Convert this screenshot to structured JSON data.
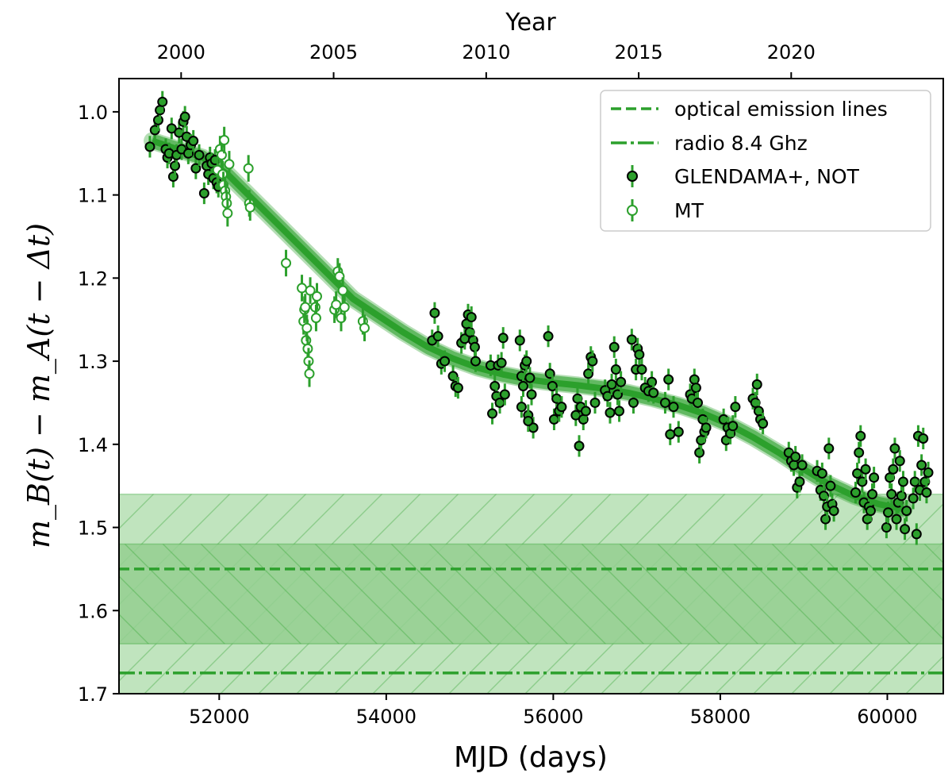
{
  "chart_data": {
    "type": "scatter",
    "title": "",
    "xlabel": "MJD (days)",
    "ylabel": "m_B(t) − m_A(t − Δt)",
    "top_xlabel": "Year",
    "xlim": [
      50800,
      60670
    ],
    "ylim": [
      0.96,
      1.7
    ],
    "y_inverted": true,
    "x_ticks": [
      52000,
      54000,
      56000,
      58000,
      60000
    ],
    "x_tick_labels": [
      "52000",
      "54000",
      "56000",
      "58000",
      "60000"
    ],
    "y_ticks": [
      1.0,
      1.1,
      1.2,
      1.3,
      1.4,
      1.5,
      1.6,
      1.7
    ],
    "y_tick_labels": [
      "1.0",
      "1.1",
      "1.2",
      "1.3",
      "1.4",
      "1.5",
      "1.6",
      "1.7"
    ],
    "top_ticks_mjd": [
      51544,
      53370,
      55197,
      57023,
      58849
    ],
    "top_tick_labels": [
      "2000",
      "2005",
      "2010",
      "2015",
      "2020"
    ],
    "colors": {
      "green": "#2ca02c",
      "band_light": "#c0e4be",
      "band_dark": "#94cf91",
      "marker_edge": "#000000"
    },
    "bands": [
      {
        "name": "radio 8.4 Ghz range",
        "ymin": 1.46,
        "ymax": 1.7,
        "hatch": "/"
      },
      {
        "name": "optical emission lines range",
        "ymin": 1.52,
        "ymax": 1.64,
        "hatch": "\\"
      }
    ],
    "hlines": [
      {
        "name": "optical emission lines",
        "y": 1.55,
        "style": "dashed"
      },
      {
        "name": "radio 8.4 Ghz",
        "y": 1.675,
        "style": "dashdot"
      }
    ],
    "legend": {
      "position": "top-right",
      "entries": [
        {
          "label": "optical emission lines",
          "kind": "dashed"
        },
        {
          "label": "radio 8.4 Ghz",
          "kind": "dashdot"
        },
        {
          "label": "GLENDAMA+, NOT",
          "kind": "filled-marker"
        },
        {
          "label": "MT",
          "kind": "open-marker"
        }
      ]
    },
    "model_curve": {
      "x": [
        51200,
        51500,
        51800,
        52100,
        52400,
        52700,
        53000,
        53300,
        53600,
        53900,
        54200,
        54500,
        54800,
        55100,
        55400,
        55700,
        56000,
        56300,
        56600,
        56900,
        57200,
        57500,
        57800,
        58100,
        58400,
        58700,
        59000,
        59300,
        59600,
        59900,
        60200
      ],
      "y": [
        1.035,
        1.045,
        1.055,
        1.075,
        1.105,
        1.135,
        1.165,
        1.195,
        1.225,
        1.245,
        1.265,
        1.283,
        1.297,
        1.308,
        1.316,
        1.322,
        1.326,
        1.329,
        1.333,
        1.338,
        1.345,
        1.353,
        1.363,
        1.376,
        1.392,
        1.41,
        1.43,
        1.448,
        1.462,
        1.472,
        1.478
      ]
    },
    "series": [
      {
        "name": "GLENDAMA+, NOT",
        "marker": "filled",
        "points": [
          [
            51170,
            1.042
          ],
          [
            51230,
            1.022
          ],
          [
            51270,
            1.01
          ],
          [
            51290,
            0.998
          ],
          [
            51320,
            0.988
          ],
          [
            51360,
            1.045
          ],
          [
            51380,
            1.055
          ],
          [
            51400,
            1.05
          ],
          [
            51430,
            1.02
          ],
          [
            51450,
            1.078
          ],
          [
            51470,
            1.065
          ],
          [
            51490,
            1.052
          ],
          [
            51520,
            1.025
          ],
          [
            51550,
            1.045
          ],
          [
            51570,
            1.012
          ],
          [
            51590,
            1.006
          ],
          [
            51610,
            1.03
          ],
          [
            51630,
            1.05
          ],
          [
            51660,
            1.04
          ],
          [
            51690,
            1.035
          ],
          [
            51720,
            1.068
          ],
          [
            51760,
            1.052
          ],
          [
            51820,
            1.098
          ],
          [
            51850,
            1.065
          ],
          [
            51870,
            1.075
          ],
          [
            51890,
            1.055
          ],
          [
            51910,
            1.062
          ],
          [
            51930,
            1.08
          ],
          [
            51950,
            1.058
          ],
          [
            51970,
            1.085
          ],
          [
            51990,
            1.09
          ]
        ]
      },
      {
        "name": "GLENDAMA+, NOT",
        "marker": "filled",
        "points": [
          [
            54550,
            1.275
          ],
          [
            54580,
            1.242
          ],
          [
            54620,
            1.27
          ],
          [
            54660,
            1.303
          ],
          [
            54700,
            1.3
          ],
          [
            54800,
            1.318
          ],
          [
            54830,
            1.33
          ],
          [
            54860,
            1.332
          ],
          [
            54900,
            1.278
          ],
          [
            54940,
            1.273
          ],
          [
            54960,
            1.255
          ],
          [
            54980,
            1.244
          ],
          [
            55000,
            1.265
          ],
          [
            55020,
            1.247
          ],
          [
            55040,
            1.275
          ],
          [
            55060,
            1.283
          ],
          [
            55070,
            1.3
          ],
          [
            55250,
            1.305
          ],
          [
            55270,
            1.363
          ],
          [
            55300,
            1.33
          ],
          [
            55320,
            1.342
          ],
          [
            55340,
            1.305
          ],
          [
            55360,
            1.35
          ],
          [
            55380,
            1.302
          ],
          [
            55400,
            1.272
          ],
          [
            55420,
            1.34
          ],
          [
            55600,
            1.275
          ],
          [
            55620,
            1.318
          ],
          [
            55640,
            1.33
          ],
          [
            55660,
            1.305
          ],
          [
            55680,
            1.3
          ],
          [
            55700,
            1.365
          ],
          [
            55720,
            1.32
          ],
          [
            55740,
            1.34
          ],
          [
            55760,
            1.38
          ],
          [
            55700,
            1.372
          ],
          [
            55620,
            1.355
          ],
          [
            55940,
            1.27
          ],
          [
            55960,
            1.315
          ],
          [
            55990,
            1.33
          ],
          [
            56010,
            1.37
          ],
          [
            56040,
            1.345
          ],
          [
            56070,
            1.36
          ],
          [
            56100,
            1.355
          ],
          [
            56270,
            1.365
          ],
          [
            56290,
            1.345
          ],
          [
            56310,
            1.402
          ],
          [
            56330,
            1.355
          ],
          [
            56360,
            1.37
          ],
          [
            56390,
            1.36
          ],
          [
            56420,
            1.315
          ],
          [
            56450,
            1.295
          ],
          [
            56470,
            1.3
          ],
          [
            56500,
            1.35
          ]
        ]
      },
      {
        "name": "GLENDAMA+, NOT",
        "marker": "filled",
        "points": [
          [
            56620,
            1.335
          ],
          [
            56650,
            1.342
          ],
          [
            56680,
            1.362
          ],
          [
            56700,
            1.328
          ],
          [
            56730,
            1.283
          ],
          [
            56750,
            1.31
          ],
          [
            56770,
            1.34
          ],
          [
            56790,
            1.36
          ],
          [
            56810,
            1.325
          ],
          [
            56940,
            1.274
          ],
          [
            56960,
            1.35
          ],
          [
            56990,
            1.31
          ],
          [
            57010,
            1.285
          ],
          [
            57030,
            1.292
          ],
          [
            57060,
            1.31
          ],
          [
            57100,
            1.332
          ],
          [
            57140,
            1.336
          ],
          [
            57180,
            1.325
          ],
          [
            57200,
            1.338
          ],
          [
            57340,
            1.35
          ],
          [
            57380,
            1.322
          ],
          [
            57400,
            1.388
          ],
          [
            57440,
            1.355
          ],
          [
            57500,
            1.385
          ],
          [
            57640,
            1.34
          ],
          [
            57660,
            1.345
          ],
          [
            57690,
            1.322
          ],
          [
            57710,
            1.332
          ],
          [
            57730,
            1.35
          ],
          [
            57750,
            1.41
          ],
          [
            57770,
            1.395
          ],
          [
            57790,
            1.37
          ],
          [
            57810,
            1.385
          ],
          [
            57830,
            1.38
          ],
          [
            58040,
            1.37
          ],
          [
            58070,
            1.395
          ],
          [
            58090,
            1.38
          ],
          [
            58120,
            1.387
          ],
          [
            58150,
            1.378
          ],
          [
            58180,
            1.355
          ],
          [
            58390,
            1.345
          ],
          [
            58420,
            1.35
          ],
          [
            58440,
            1.328
          ],
          [
            58460,
            1.36
          ],
          [
            58480,
            1.37
          ],
          [
            58510,
            1.375
          ]
        ]
      },
      {
        "name": "GLENDAMA+, NOT",
        "marker": "filled",
        "points": [
          [
            58820,
            1.41
          ],
          [
            58850,
            1.42
          ],
          [
            58880,
            1.425
          ],
          [
            58900,
            1.415
          ],
          [
            58920,
            1.452
          ],
          [
            58950,
            1.445
          ],
          [
            58980,
            1.425
          ],
          [
            59160,
            1.432
          ],
          [
            59200,
            1.455
          ],
          [
            59220,
            1.435
          ],
          [
            59240,
            1.462
          ],
          [
            59260,
            1.49
          ],
          [
            59280,
            1.475
          ],
          [
            59300,
            1.405
          ],
          [
            59320,
            1.45
          ],
          [
            59340,
            1.472
          ],
          [
            59360,
            1.48
          ],
          [
            59620,
            1.458
          ],
          [
            59640,
            1.435
          ],
          [
            59660,
            1.41
          ],
          [
            59680,
            1.39
          ],
          [
            59700,
            1.445
          ],
          [
            59720,
            1.47
          ],
          [
            59740,
            1.43
          ],
          [
            59760,
            1.49
          ],
          [
            59780,
            1.475
          ],
          [
            59800,
            1.48
          ],
          [
            59820,
            1.46
          ],
          [
            59840,
            1.44
          ],
          [
            59990,
            1.5
          ],
          [
            60010,
            1.482
          ],
          [
            60030,
            1.44
          ],
          [
            60050,
            1.46
          ],
          [
            60070,
            1.43
          ],
          [
            60090,
            1.405
          ],
          [
            60110,
            1.49
          ],
          [
            60130,
            1.47
          ],
          [
            60150,
            1.42
          ],
          [
            60170,
            1.462
          ],
          [
            60190,
            1.445
          ],
          [
            60210,
            1.502
          ],
          [
            60230,
            1.48
          ],
          [
            60310,
            1.465
          ],
          [
            60330,
            1.445
          ],
          [
            60350,
            1.508
          ],
          [
            60370,
            1.39
          ],
          [
            60390,
            1.455
          ],
          [
            60410,
            1.425
          ],
          [
            60430,
            1.393
          ],
          [
            60450,
            1.445
          ],
          [
            60470,
            1.458
          ],
          [
            60490,
            1.434
          ]
        ]
      },
      {
        "name": "MT",
        "marker": "open",
        "points": [
          [
            51980,
            1.07
          ],
          [
            52010,
            1.045
          ],
          [
            52030,
            1.052
          ],
          [
            52040,
            1.075
          ],
          [
            52050,
            1.088
          ],
          [
            52060,
            1.034
          ],
          [
            52070,
            1.095
          ],
          [
            52080,
            1.102
          ],
          [
            52090,
            1.11
          ],
          [
            52100,
            1.122
          ],
          [
            52120,
            1.063
          ],
          [
            52350,
            1.068
          ],
          [
            52360,
            1.11
          ],
          [
            52370,
            1.115
          ],
          [
            52800,
            1.182
          ],
          [
            52990,
            1.212
          ],
          [
            53010,
            1.252
          ],
          [
            53020,
            1.238
          ],
          [
            53030,
            1.235
          ],
          [
            53040,
            1.275
          ],
          [
            53050,
            1.26
          ],
          [
            53060,
            1.285
          ],
          [
            53070,
            1.3
          ],
          [
            53080,
            1.315
          ],
          [
            53090,
            1.215
          ],
          [
            53150,
            1.235
          ],
          [
            53160,
            1.248
          ],
          [
            53170,
            1.222
          ],
          [
            53380,
            1.238
          ],
          [
            53400,
            1.232
          ],
          [
            53420,
            1.192
          ],
          [
            53440,
            1.198
          ],
          [
            53460,
            1.248
          ],
          [
            53480,
            1.215
          ],
          [
            53500,
            1.235
          ],
          [
            53720,
            1.252
          ],
          [
            53740,
            1.26
          ]
        ]
      }
    ]
  }
}
